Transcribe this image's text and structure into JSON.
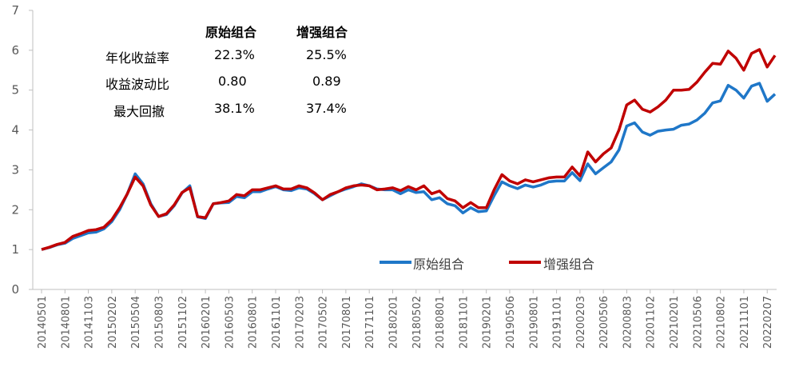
{
  "stats_table": {
    "headers": [
      "原始组合",
      "增强组合"
    ],
    "rows": [
      {
        "label": "年化收益率",
        "v1": "22.3%",
        "v2": "25.5%"
      },
      {
        "label": "收益波动比",
        "v1": "0.80",
        "v2": "0.89"
      },
      {
        "label": "最大回撤",
        "v1": "38.1%",
        "v2": "37.4%"
      }
    ]
  },
  "legend": {
    "s1": "原始组合",
    "s2": "增强组合"
  },
  "colors": {
    "s1": "#1f77c8",
    "s2": "#c00000"
  },
  "chart_data": {
    "type": "line",
    "ylim": [
      0,
      7
    ],
    "yticks": [
      0,
      1,
      2,
      3,
      4,
      5,
      6,
      7
    ],
    "legend_position": "bottom-right",
    "grid": false,
    "x_tick_labels": [
      "20140501",
      "20140801",
      "20141103",
      "20150202",
      "20150504",
      "20150803",
      "20151102",
      "20160201",
      "20160503",
      "20160801",
      "20161101",
      "20170203",
      "20170502",
      "20170801",
      "20171101",
      "20180201",
      "20180502",
      "20180801",
      "20181101",
      "20190201",
      "20190506",
      "20190801",
      "20191101",
      "20200203",
      "20200506",
      "20200803",
      "20201102",
      "20210201",
      "20210506",
      "20210802",
      "20211101",
      "20220207"
    ],
    "x_tick_every": 3,
    "series": [
      {
        "name": "原始组合",
        "values": [
          1.0,
          1.05,
          1.12,
          1.16,
          1.28,
          1.35,
          1.42,
          1.44,
          1.52,
          1.7,
          2.0,
          2.4,
          2.9,
          2.65,
          2.15,
          1.83,
          1.88,
          2.1,
          2.42,
          2.6,
          1.82,
          1.78,
          2.15,
          2.17,
          2.18,
          2.33,
          2.3,
          2.45,
          2.45,
          2.52,
          2.58,
          2.5,
          2.48,
          2.55,
          2.52,
          2.4,
          2.25,
          2.35,
          2.45,
          2.52,
          2.58,
          2.65,
          2.6,
          2.52,
          2.5,
          2.5,
          2.4,
          2.5,
          2.43,
          2.45,
          2.25,
          2.3,
          2.15,
          2.1,
          1.92,
          2.05,
          1.95,
          1.97,
          2.35,
          2.7,
          2.6,
          2.53,
          2.62,
          2.57,
          2.62,
          2.7,
          2.72,
          2.72,
          2.93,
          2.73,
          3.15,
          2.9,
          3.05,
          3.2,
          3.5,
          4.1,
          4.18,
          3.95,
          3.87,
          3.97,
          4.0,
          4.02,
          4.12,
          4.15,
          4.25,
          4.42,
          4.68,
          4.73,
          5.12,
          5.0,
          4.8,
          5.1,
          5.17,
          4.72,
          4.9
        ]
      },
      {
        "name": "增强组合",
        "values": [
          1.0,
          1.06,
          1.13,
          1.18,
          1.33,
          1.4,
          1.48,
          1.5,
          1.56,
          1.75,
          2.05,
          2.4,
          2.82,
          2.6,
          2.12,
          1.83,
          1.9,
          2.12,
          2.43,
          2.55,
          1.83,
          1.8,
          2.15,
          2.18,
          2.22,
          2.38,
          2.35,
          2.5,
          2.5,
          2.55,
          2.6,
          2.52,
          2.52,
          2.6,
          2.55,
          2.42,
          2.25,
          2.38,
          2.45,
          2.55,
          2.6,
          2.62,
          2.6,
          2.5,
          2.52,
          2.55,
          2.48,
          2.58,
          2.5,
          2.6,
          2.4,
          2.47,
          2.28,
          2.22,
          2.05,
          2.18,
          2.05,
          2.05,
          2.5,
          2.88,
          2.72,
          2.65,
          2.75,
          2.7,
          2.75,
          2.8,
          2.82,
          2.82,
          3.07,
          2.85,
          3.45,
          3.2,
          3.4,
          3.55,
          4.0,
          4.63,
          4.75,
          4.52,
          4.45,
          4.58,
          4.75,
          5.0,
          5.0,
          5.02,
          5.2,
          5.45,
          5.67,
          5.65,
          5.98,
          5.8,
          5.5,
          5.92,
          6.02,
          5.58,
          5.87
        ]
      }
    ]
  }
}
